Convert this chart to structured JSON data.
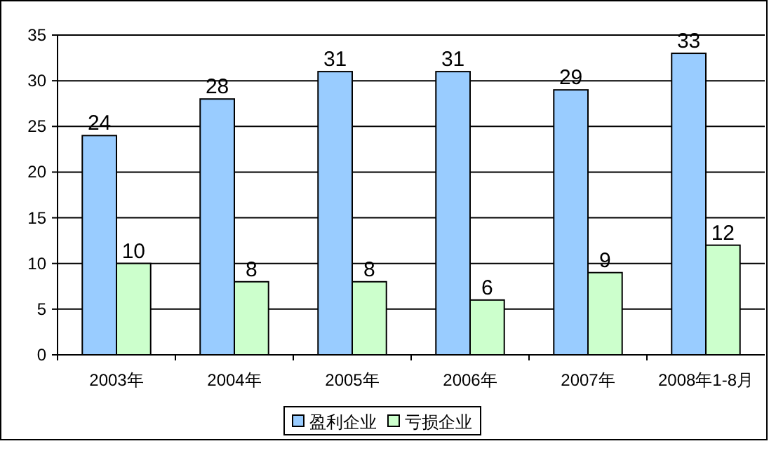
{
  "chart_data": {
    "type": "bar",
    "categories": [
      "2003年",
      "2004年",
      "2005年",
      "2006年",
      "2007年",
      "2008年1-8月"
    ],
    "series": [
      {
        "name": "盈利企业",
        "color": "#99ccff",
        "values": [
          24,
          28,
          31,
          31,
          29,
          33
        ]
      },
      {
        "name": "亏损企业",
        "color": "#ccffcc",
        "values": [
          10,
          8,
          8,
          6,
          9,
          12
        ]
      }
    ],
    "ylim": [
      0,
      35
    ],
    "yticks": [
      0,
      5,
      10,
      15,
      20,
      25,
      30,
      35
    ],
    "grid": "y",
    "legend": "bottom",
    "data_labels": true
  }
}
